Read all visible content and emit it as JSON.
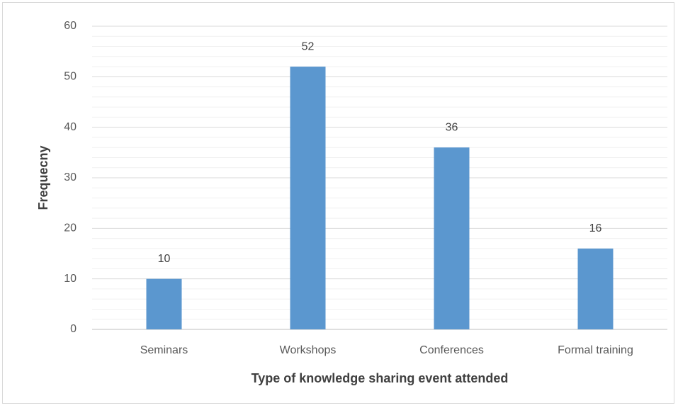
{
  "chart_data": {
    "type": "bar",
    "x_label": "Type of knowledge sharing event attended",
    "y_label": "Frequecny",
    "categories": [
      "Seminars",
      "Workshops",
      "Conferences",
      "Formal training"
    ],
    "values": [
      10,
      52,
      36,
      16
    ],
    "color": "#5b97cf",
    "ylim": [
      0,
      60
    ],
    "yticks": [
      0,
      10,
      20,
      30,
      40,
      50,
      60
    ],
    "minor_yticks": [
      2,
      4,
      6,
      8,
      12,
      14,
      16,
      18,
      22,
      24,
      26,
      28,
      32,
      34,
      36,
      38,
      42,
      44,
      46,
      48,
      52,
      54,
      56,
      58
    ],
    "grid": true,
    "data_labels": true
  }
}
